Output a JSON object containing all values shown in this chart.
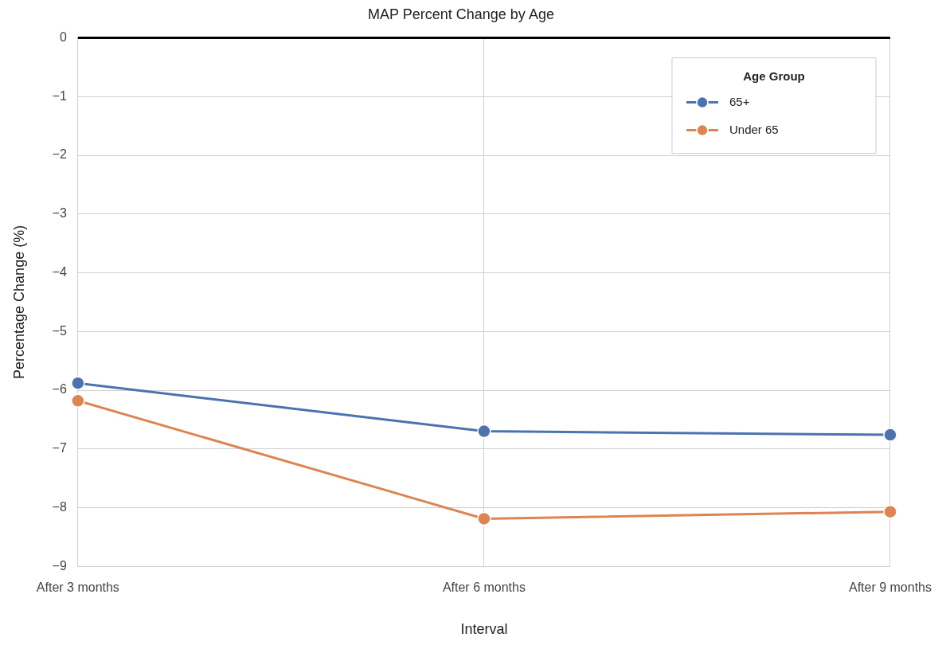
{
  "chart_data": {
    "type": "line",
    "title": "MAP Percent Change by Age",
    "xlabel": "Interval",
    "ylabel": "Percentage Change (%)",
    "legend_title": "Age Group",
    "categories": [
      "After 3 months",
      "After 6 months",
      "After 9 months"
    ],
    "series": [
      {
        "name": "65+",
        "color": "#4c72b0",
        "values": [
          -5.88,
          -6.7,
          -6.76
        ]
      },
      {
        "name": "Under 65",
        "color": "#dd8452",
        "values": [
          -6.18,
          -8.19,
          -8.07
        ]
      }
    ],
    "ylim": [
      -9,
      0
    ],
    "yticks": [
      {
        "value": -9,
        "label": "−9"
      },
      {
        "value": -8,
        "label": "−8"
      },
      {
        "value": -7,
        "label": "−7"
      },
      {
        "value": -6,
        "label": "−6"
      },
      {
        "value": -5,
        "label": "−5"
      },
      {
        "value": -4,
        "label": "−4"
      },
      {
        "value": -3,
        "label": "−3"
      },
      {
        "value": -2,
        "label": "−2"
      },
      {
        "value": -1,
        "label": "−1"
      },
      0
    ],
    "ref_lines": [
      {
        "axis": "y",
        "value": 0,
        "color": "#000000"
      }
    ],
    "grid": true,
    "legend": "top right",
    "marker": "circle",
    "line_style": "solid"
  }
}
